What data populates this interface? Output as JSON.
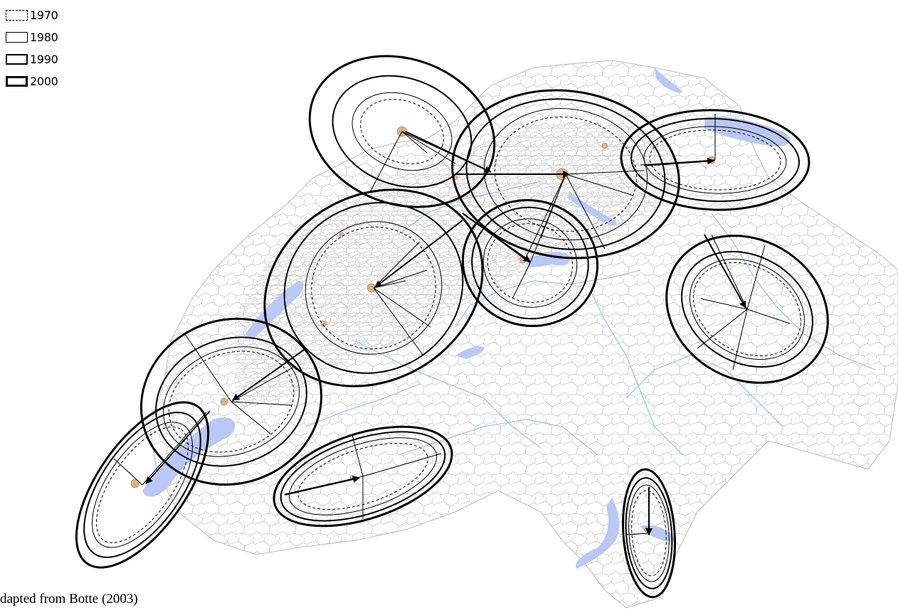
{
  "legend": {
    "items": [
      {
        "label": "1970",
        "style": "dashed-thin"
      },
      {
        "label": "1980",
        "style": "solid-thin"
      },
      {
        "label": "1990",
        "style": "solid-medium"
      },
      {
        "label": "2000",
        "style": "solid-thick"
      }
    ]
  },
  "credit": "dapted from Botte (2003)",
  "colors": {
    "lakes": "#b9c8f5",
    "rivers": "#a9bff0",
    "borders": "#c4c4c4",
    "urban": "#d9b384",
    "ellipses": "#000000",
    "background": "#ffffff"
  },
  "map": {
    "subject": "Switzerland municipalities with standard deviational ellipses per urban region",
    "ellipse_regions": 10
  }
}
